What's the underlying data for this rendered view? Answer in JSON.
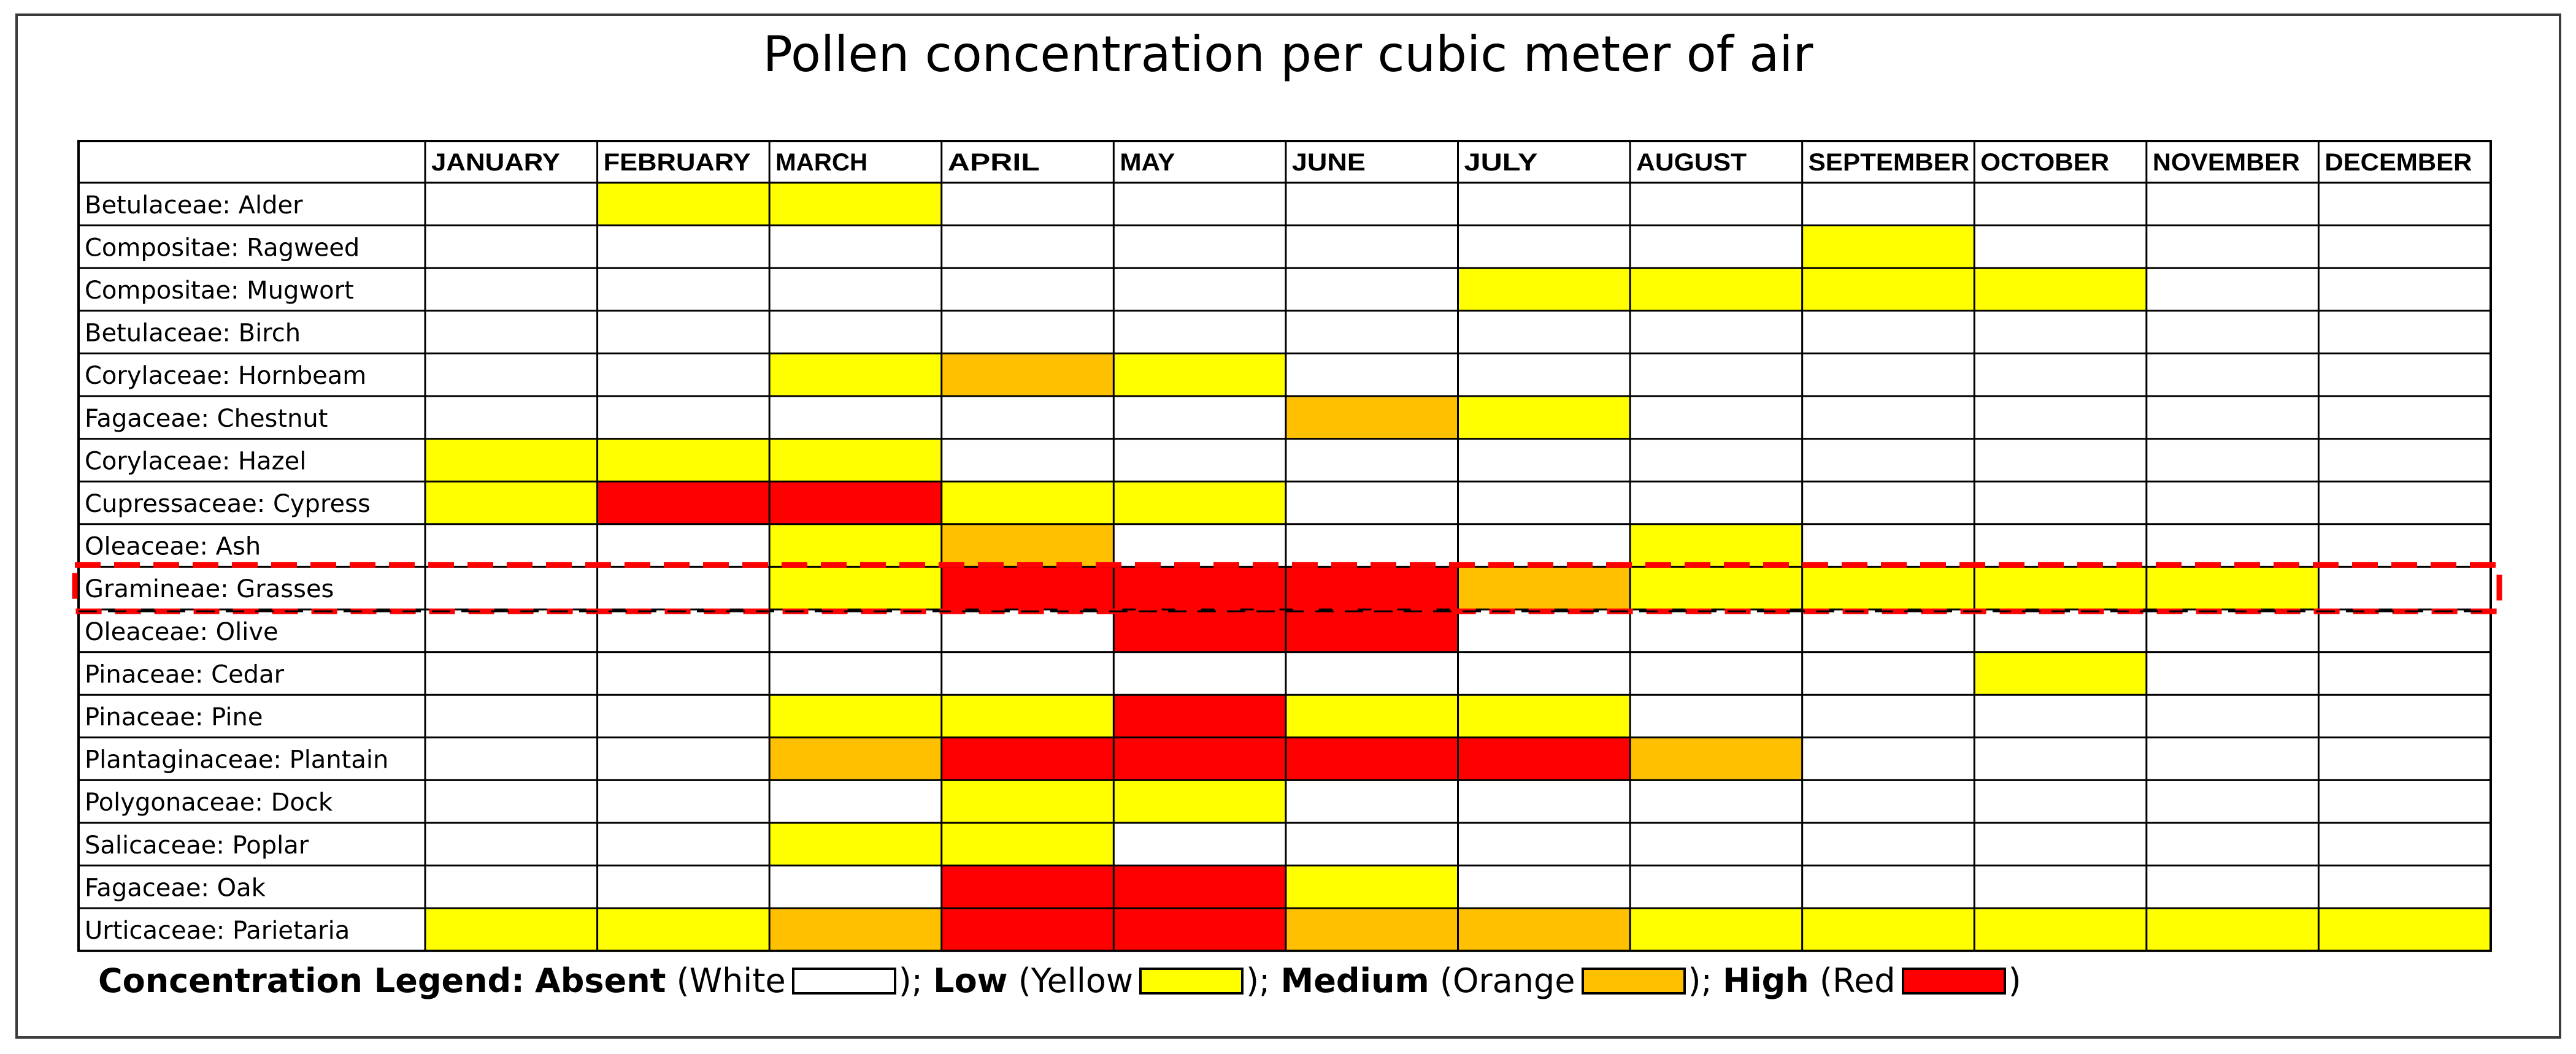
{
  "chart_data": {
    "type": "heatmap",
    "title": "Pollen concentration per cubic meter of air",
    "months": [
      "JANUARY",
      "FEBRUARY",
      "MARCH",
      "APRIL",
      "MAY",
      "JUNE",
      "JULY",
      "AUGUST",
      "SEPTEMBER",
      "OCTOBER",
      "NOVEMBER",
      "DECEMBER"
    ],
    "levels": {
      "0": {
        "name": "Absent",
        "color": "#ffffff"
      },
      "1": {
        "name": "Low",
        "color": "#ffff00"
      },
      "2": {
        "name": "Medium",
        "color": "#ffc000"
      },
      "3": {
        "name": "High",
        "color": "#ff0000"
      }
    },
    "rows": [
      {
        "label": "Betulaceae: Alder",
        "values": [
          0,
          1,
          1,
          0,
          0,
          0,
          0,
          0,
          0,
          0,
          0,
          0
        ]
      },
      {
        "label": "Compositae: Ragweed",
        "values": [
          0,
          0,
          0,
          0,
          0,
          0,
          0,
          0,
          1,
          0,
          0,
          0
        ]
      },
      {
        "label": "Compositae: Mugwort",
        "values": [
          0,
          0,
          0,
          0,
          0,
          0,
          1,
          1,
          1,
          1,
          0,
          0
        ]
      },
      {
        "label": "Betulaceae: Birch",
        "values": [
          0,
          0,
          0,
          0,
          0,
          0,
          0,
          0,
          0,
          0,
          0,
          0
        ]
      },
      {
        "label": "Corylaceae: Hornbeam",
        "values": [
          0,
          0,
          1,
          2,
          1,
          0,
          0,
          0,
          0,
          0,
          0,
          0
        ]
      },
      {
        "label": "Fagaceae: Chestnut",
        "values": [
          0,
          0,
          0,
          0,
          0,
          2,
          1,
          0,
          0,
          0,
          0,
          0
        ]
      },
      {
        "label": "Corylaceae: Hazel",
        "values": [
          1,
          1,
          1,
          0,
          0,
          0,
          0,
          0,
          0,
          0,
          0,
          0
        ]
      },
      {
        "label": "Cupressaceae: Cypress",
        "values": [
          1,
          3,
          3,
          1,
          1,
          0,
          0,
          0,
          0,
          0,
          0,
          0
        ]
      },
      {
        "label": "Oleaceae: Ash",
        "values": [
          0,
          0,
          1,
          2,
          0,
          0,
          0,
          1,
          0,
          0,
          0,
          0
        ]
      },
      {
        "label": "Gramineae: Grasses",
        "values": [
          0,
          0,
          1,
          3,
          3,
          3,
          2,
          1,
          1,
          1,
          1,
          0
        ],
        "highlighted": true
      },
      {
        "label": "Oleaceae: Olive",
        "values": [
          0,
          0,
          0,
          0,
          3,
          3,
          0,
          0,
          0,
          0,
          0,
          0
        ]
      },
      {
        "label": "Pinaceae: Cedar",
        "values": [
          0,
          0,
          0,
          0,
          0,
          0,
          0,
          0,
          0,
          1,
          0,
          0
        ]
      },
      {
        "label": "Pinaceae: Pine",
        "values": [
          0,
          0,
          1,
          1,
          3,
          1,
          1,
          0,
          0,
          0,
          0,
          0
        ]
      },
      {
        "label": "Plantaginaceae: Plantain",
        "values": [
          0,
          0,
          2,
          3,
          3,
          3,
          3,
          2,
          0,
          0,
          0,
          0
        ]
      },
      {
        "label": "Polygonaceae: Dock",
        "values": [
          0,
          0,
          0,
          1,
          1,
          0,
          0,
          0,
          0,
          0,
          0,
          0
        ]
      },
      {
        "label": "Salicaceae: Poplar",
        "values": [
          0,
          0,
          1,
          1,
          0,
          0,
          0,
          0,
          0,
          0,
          0,
          0
        ]
      },
      {
        "label": "Fagaceae: Oak",
        "values": [
          0,
          0,
          0,
          3,
          3,
          1,
          0,
          0,
          0,
          0,
          0,
          0
        ]
      },
      {
        "label": "Urticaceae: Parietaria",
        "values": [
          1,
          1,
          2,
          3,
          3,
          2,
          2,
          1,
          1,
          1,
          1,
          1
        ]
      }
    ]
  },
  "legend": {
    "heading": "Concentration Legend:",
    "absent_name": "Absent",
    "absent_color": "(White",
    "low_name": "Low",
    "low_color": "(Yellow",
    "medium_name": "Medium",
    "medium_color": "(Orange",
    "high_name": "High",
    "high_color": "(Red",
    "sep": ");",
    "end": ")"
  },
  "highlight_color": "#ff0000"
}
